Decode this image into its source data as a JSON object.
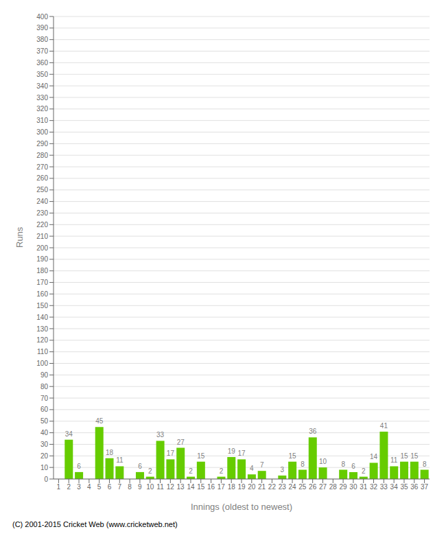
{
  "chart_data": {
    "type": "bar",
    "categories": [
      "1",
      "2",
      "3",
      "4",
      "5",
      "6",
      "7",
      "8",
      "9",
      "10",
      "11",
      "12",
      "13",
      "14",
      "15",
      "16",
      "17",
      "18",
      "19",
      "20",
      "21",
      "22",
      "23",
      "24",
      "25",
      "26",
      "27",
      "28",
      "29",
      "30",
      "31",
      "32",
      "33",
      "34",
      "35",
      "36",
      "37"
    ],
    "values": [
      0,
      34,
      6,
      0,
      45,
      18,
      11,
      0,
      6,
      2,
      33,
      17,
      27,
      2,
      15,
      0,
      2,
      19,
      17,
      4,
      7,
      0,
      3,
      15,
      8,
      36,
      10,
      0,
      8,
      6,
      2,
      14,
      41,
      11,
      15,
      15,
      8
    ],
    "color": "#66cc00",
    "xlabel": "Innings (oldest to newest)",
    "ylabel": "Runs",
    "annotations": [
      "(C) 2001-2015 Cricket Web (www.cricketweb.net)"
    ],
    "ylim": [
      0,
      400
    ],
    "yticks": [
      0,
      10,
      20,
      30,
      40,
      50,
      60,
      70,
      80,
      90,
      100,
      110,
      120,
      130,
      140,
      150,
      160,
      170,
      180,
      190,
      200,
      210,
      220,
      230,
      240,
      250,
      260,
      270,
      280,
      290,
      300,
      310,
      320,
      330,
      340,
      350,
      360,
      370,
      380,
      390,
      400
    ],
    "grid": true,
    "data_labels": true
  }
}
